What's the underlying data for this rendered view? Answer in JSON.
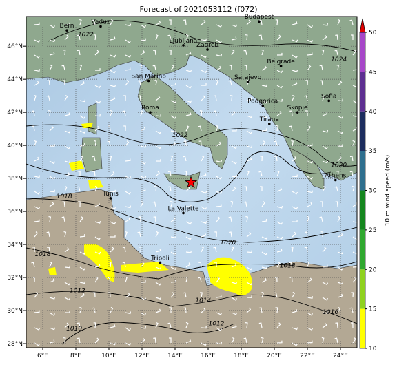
{
  "map": {
    "title": "Forecast of 2021053112 (f072)",
    "lon_range": [
      5,
      25
    ],
    "lat_range": [
      27.75,
      47.8
    ],
    "lon_ticks": [
      {
        "value": 6,
        "label": "6°E"
      },
      {
        "value": 8,
        "label": "8°E"
      },
      {
        "value": 10,
        "label": "10°E"
      },
      {
        "value": 12,
        "label": "12°E"
      },
      {
        "value": 14,
        "label": "14°E"
      },
      {
        "value": 16,
        "label": "16°E"
      },
      {
        "value": 18,
        "label": "18°E"
      },
      {
        "value": 20,
        "label": "20°E"
      },
      {
        "value": 22,
        "label": "22°E"
      },
      {
        "value": 24,
        "label": "24°E"
      }
    ],
    "lat_ticks": [
      {
        "value": 28,
        "label": "28°N"
      },
      {
        "value": 30,
        "label": "30°N"
      },
      {
        "value": 32,
        "label": "32°N"
      },
      {
        "value": 34,
        "label": "34°N"
      },
      {
        "value": 36,
        "label": "36°N"
      },
      {
        "value": 38,
        "label": "38°N"
      },
      {
        "value": 40,
        "label": "40°N"
      },
      {
        "value": 42,
        "label": "42°N"
      },
      {
        "value": 44,
        "label": "44°N"
      },
      {
        "value": 46,
        "label": "46°N"
      }
    ],
    "grid": true,
    "cities": [
      {
        "name": "Bern",
        "lon": 7.46,
        "lat": 46.96
      },
      {
        "name": "Vaduz",
        "lon": 9.5,
        "lat": 47.2
      },
      {
        "name": "Budapest",
        "lon": 19.08,
        "lat": 47.5
      },
      {
        "name": "Ljubljana",
        "lon": 14.5,
        "lat": 46.05
      },
      {
        "name": "Zagreb",
        "lon": 15.96,
        "lat": 45.8
      },
      {
        "name": "Belgrade",
        "lon": 20.4,
        "lat": 44.8
      },
      {
        "name": "San Marino",
        "lon": 12.4,
        "lat": 43.9
      },
      {
        "name": "Sarajevo",
        "lon": 18.4,
        "lat": 43.85
      },
      {
        "name": "Roma",
        "lon": 12.5,
        "lat": 42.0
      },
      {
        "name": "Podgorica",
        "lon": 19.3,
        "lat": 42.4
      },
      {
        "name": "Skopje",
        "lon": 21.4,
        "lat": 42.0
      },
      {
        "name": "Sofia",
        "lon": 23.3,
        "lat": 42.7
      },
      {
        "name": "Tirana",
        "lon": 19.7,
        "lat": 41.3
      },
      {
        "name": "Athens",
        "lon": 23.7,
        "lat": 37.9
      },
      {
        "name": "Tunis",
        "lon": 10.1,
        "lat": 36.8
      },
      {
        "name": "La Valette",
        "lon": 14.5,
        "lat": 35.9
      },
      {
        "name": "Tripoli",
        "lon": 13.1,
        "lat": 32.9
      }
    ],
    "isobar_labels": [
      {
        "label": "1022",
        "lon": 8.6,
        "lat": 46.6
      },
      {
        "label": "1024",
        "lon": 23.9,
        "lat": 45.1
      },
      {
        "label": "1022",
        "lon": 14.3,
        "lat": 40.5
      },
      {
        "label": "1020",
        "lon": 23.9,
        "lat": 38.7
      },
      {
        "label": "1018",
        "lon": 7.3,
        "lat": 36.8
      },
      {
        "label": "1020",
        "lon": 17.2,
        "lat": 34.0
      },
      {
        "label": "1018",
        "lon": 6.0,
        "lat": 33.3
      },
      {
        "label": "1018",
        "lon": 20.8,
        "lat": 32.6
      },
      {
        "label": "1012",
        "lon": 8.1,
        "lat": 31.1
      },
      {
        "label": "1014",
        "lon": 15.7,
        "lat": 30.5
      },
      {
        "label": "1012",
        "lon": 16.5,
        "lat": 29.1
      },
      {
        "label": "1010",
        "lon": 7.9,
        "lat": 28.8
      },
      {
        "label": "1016",
        "lon": 23.4,
        "lat": 29.8
      }
    ],
    "storm_marker": {
      "lon": 14.96,
      "lat": 37.75
    },
    "colorbar": {
      "label": "10 m wind speed (m/s)",
      "range": [
        10,
        50
      ],
      "ticks": [
        10,
        15,
        20,
        25,
        30,
        35,
        40,
        45,
        50
      ],
      "colors": [
        "#ffff00",
        "#8fd11e",
        "#2fa82f",
        "#14861e",
        "#2e6f8e",
        "#1c2d5e",
        "#5d2f91",
        "#a646c8"
      ],
      "extend_color": "#e00000"
    }
  }
}
